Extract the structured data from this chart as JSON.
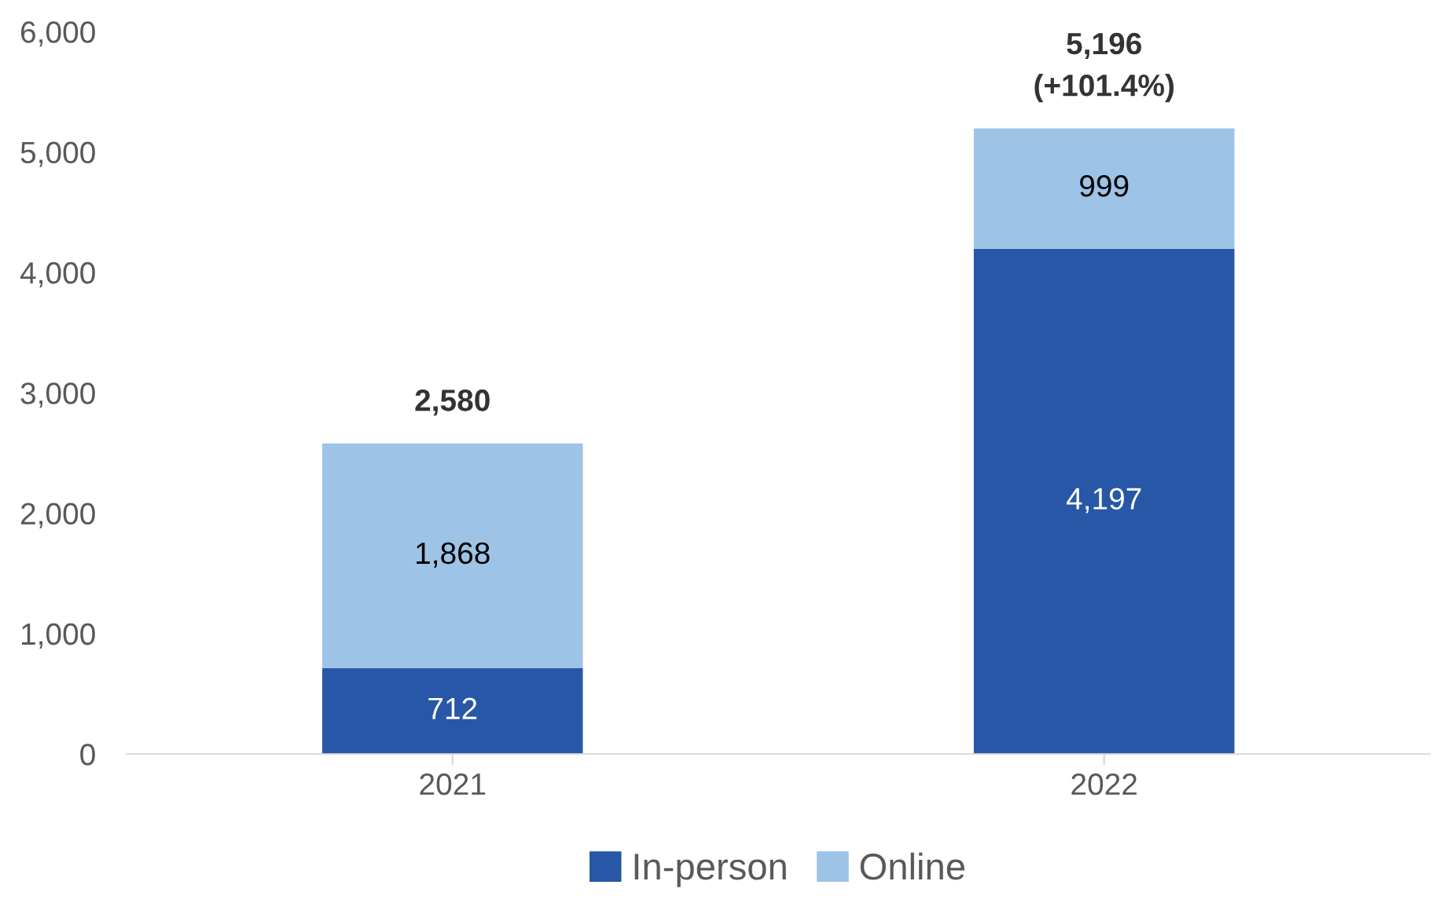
{
  "chart_data": {
    "type": "bar",
    "stacked": true,
    "categories": [
      "2021",
      "2022"
    ],
    "series": [
      {
        "name": "In-person",
        "color": "#2757a6",
        "values": [
          712,
          4197
        ],
        "value_labels": [
          "712",
          "4,197"
        ]
      },
      {
        "name": "Online",
        "color": "#9dc3e6",
        "values": [
          1868,
          999
        ],
        "value_labels": [
          "1,868",
          "999"
        ]
      }
    ],
    "totals": [
      "2,580",
      "5,196\n(+101.4%)"
    ],
    "ylim": [
      0,
      6000
    ],
    "yticks": [
      {
        "value": 0,
        "label": "0"
      },
      {
        "value": 1000,
        "label": "1,000"
      },
      {
        "value": 2000,
        "label": "2,000"
      },
      {
        "value": 3000,
        "label": "3,000"
      },
      {
        "value": 4000,
        "label": "4,000"
      },
      {
        "value": 5000,
        "label": "5,000"
      },
      {
        "value": 6000,
        "label": "6,000"
      }
    ],
    "grid": false,
    "legend": "bottom"
  }
}
